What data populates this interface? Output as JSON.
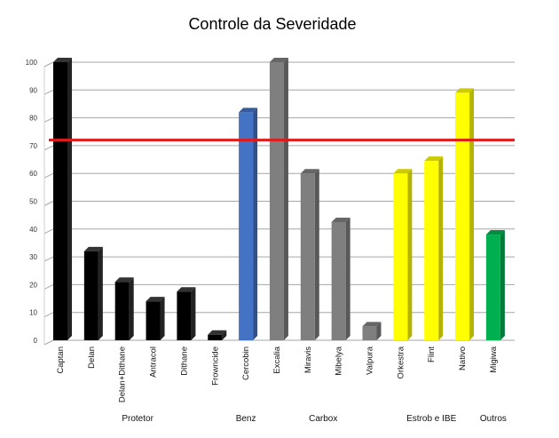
{
  "chart_data": {
    "type": "bar",
    "title": "Controle da Severidade",
    "xlabel": "",
    "ylabel": "",
    "ylim": [
      0,
      100
    ],
    "yticks": [
      0,
      10,
      20,
      30,
      40,
      50,
      60,
      70,
      80,
      90,
      100
    ],
    "grid": true,
    "legend": "none",
    "categories": [
      "Captan",
      "Delan",
      "Delan+Dithane",
      "Antracol",
      "Dithane",
      "Frowncide",
      "Cercobin",
      "Excalia",
      "Miravis",
      "Mibelya",
      "Valpura",
      "Orkestra",
      "Flint",
      "Nativo",
      "Migiwa"
    ],
    "values": [
      100,
      32,
      21,
      14,
      17.5,
      2,
      82,
      100,
      60,
      42.5,
      5,
      60,
      64.5,
      89,
      38
    ],
    "bar_colors": [
      "#000000",
      "#000000",
      "#000000",
      "#000000",
      "#000000",
      "#000000",
      "#4472C4",
      "#7F7F7F",
      "#7F7F7F",
      "#7F7F7F",
      "#7F7F7F",
      "#FFFF00",
      "#FFFF00",
      "#FFFF00",
      "#00B050"
    ],
    "groups": [
      {
        "label": "Protetor",
        "from": 0,
        "to": 5
      },
      {
        "label": "Benz",
        "from": 6,
        "to": 6
      },
      {
        "label": "Carbox",
        "from": 7,
        "to": 10
      },
      {
        "label": "Estrob e IBE",
        "from": 11,
        "to": 13
      },
      {
        "label": "Outros",
        "from": 14,
        "to": 14
      }
    ],
    "reference_line": {
      "value": 72,
      "color": "#E31A1C"
    }
  }
}
